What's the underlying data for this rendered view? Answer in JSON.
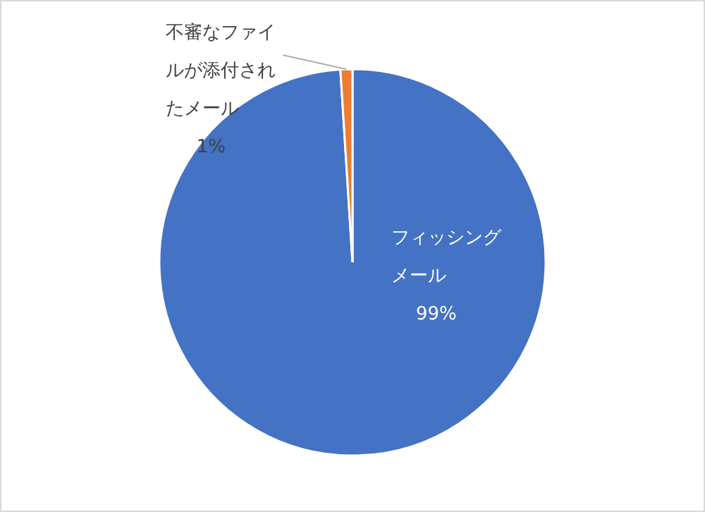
{
  "chart_data": {
    "type": "pie",
    "categories": [
      "フィッシングメール",
      "不審なファイルが添付されたメール"
    ],
    "values": [
      99,
      1
    ],
    "value_labels": [
      "99%",
      "1%"
    ],
    "colors": [
      "#4472c4",
      "#ed7d31"
    ],
    "legend": false
  }
}
